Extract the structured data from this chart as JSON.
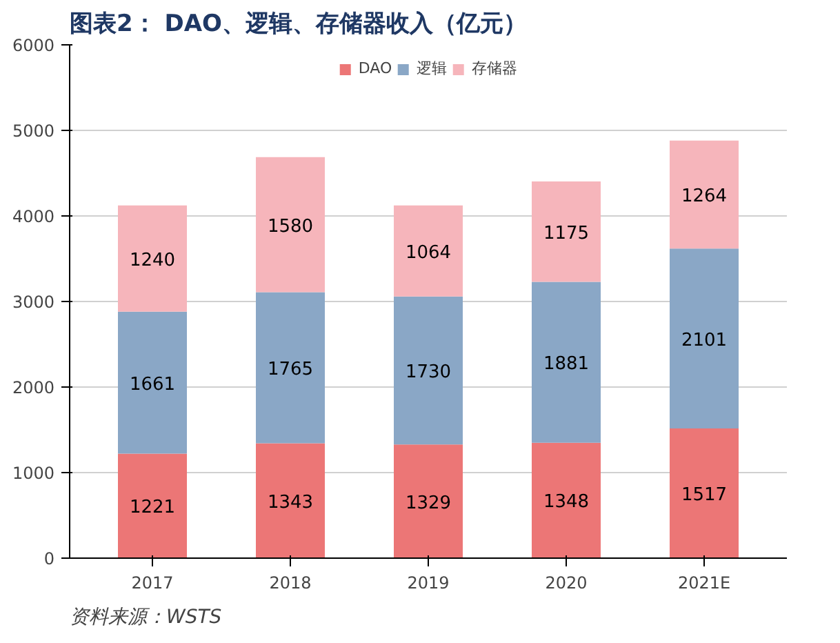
{
  "chart_data": {
    "type": "bar",
    "title": "图表2： DAO、逻辑、存储器收入（亿元）",
    "categories": [
      "2017",
      "2018",
      "2019",
      "2020",
      "2021E"
    ],
    "stacked": true,
    "data_labels": true,
    "legend": "top",
    "grid": "y",
    "ylim": [
      0,
      6000
    ],
    "yticks": [
      0,
      1000,
      2000,
      3000,
      4000,
      5000,
      6000
    ],
    "series": [
      {
        "name": "DAO",
        "color": "#ec7676",
        "values": [
          1221,
          1343,
          1329,
          1348,
          1517
        ]
      },
      {
        "name": "逻辑",
        "color": "#8aa7c6",
        "values": [
          1661,
          1765,
          1730,
          1881,
          2101
        ]
      },
      {
        "name": "存储器",
        "color": "#f6b5bb",
        "values": [
          1240,
          1580,
          1064,
          1175,
          1264
        ]
      }
    ],
    "annotations": [
      "资料来源：WSTS"
    ]
  }
}
